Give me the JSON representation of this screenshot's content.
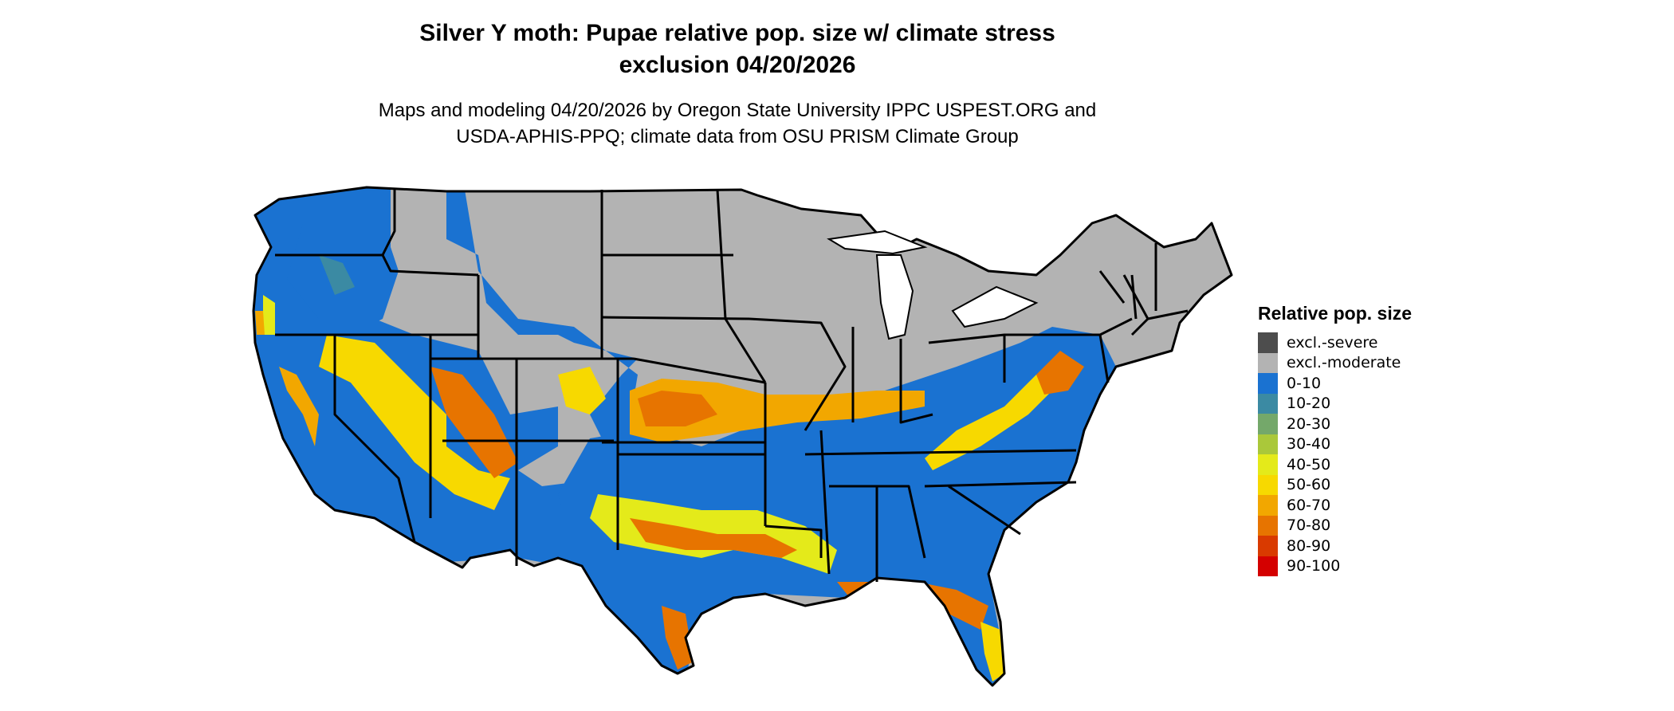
{
  "title": {
    "line1": "Silver Y moth: Pupae relative pop. size w/ climate stress",
    "line2": "exclusion 04/20/2026"
  },
  "subtitle": {
    "line1": "Maps and modeling 04/20/2026 by Oregon State University IPPC USPEST.ORG and",
    "line2": "USDA-APHIS-PPQ; climate data from OSU PRISM Climate Group"
  },
  "legend": {
    "title": "Relative pop. size",
    "items": [
      {
        "label": "excl.-severe",
        "color": "#4d4d4d"
      },
      {
        "label": "excl.-moderate",
        "color": "#b3b3b3"
      },
      {
        "label": "0-10",
        "color": "#1a72d1"
      },
      {
        "label": "10-20",
        "color": "#3b8aa3"
      },
      {
        "label": "20-30",
        "color": "#74a86a"
      },
      {
        "label": "30-40",
        "color": "#aac83a"
      },
      {
        "label": "40-50",
        "color": "#e4ea1a"
      },
      {
        "label": "50-60",
        "color": "#f7d900"
      },
      {
        "label": "60-70",
        "color": "#f2a700"
      },
      {
        "label": "70-80",
        "color": "#e77400"
      },
      {
        "label": "80-90",
        "color": "#d93a00"
      },
      {
        "label": "90-100",
        "color": "#d40000"
      }
    ]
  }
}
